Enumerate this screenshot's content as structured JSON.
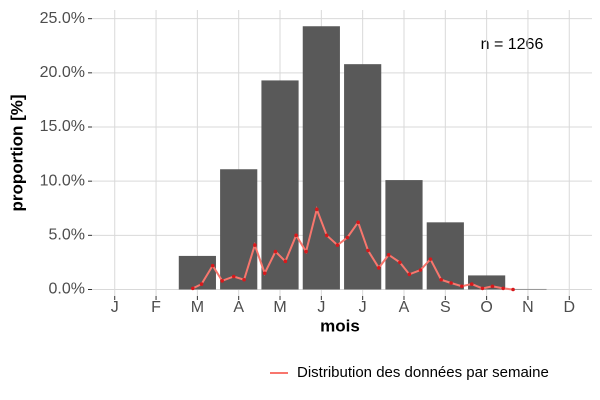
{
  "chart_data": {
    "type": "bar",
    "xlabel": "mois",
    "ylabel": "proportion [%]",
    "annotation": "n = 1266",
    "categories": [
      "J",
      "F",
      "M",
      "A",
      "M",
      "J",
      "J",
      "A",
      "S",
      "O",
      "N",
      "D"
    ],
    "values": [
      0,
      0,
      3.1,
      11.1,
      19.3,
      24.3,
      20.8,
      10.1,
      6.2,
      1.3,
      0.05,
      0
    ],
    "color": "#595959",
    "xlim": [
      0.45,
      12.55
    ],
    "ylim": [
      -0.6,
      25.8
    ],
    "yticks": [
      {
        "value": 0,
        "label": "0.0%"
      },
      {
        "value": 5,
        "label": "5.0%"
      },
      {
        "value": 10,
        "label": "10.0%"
      },
      {
        "value": 15,
        "label": "15.0%"
      },
      {
        "value": 20,
        "label": "20.0%"
      },
      {
        "value": 25,
        "label": "25.0%"
      }
    ],
    "grid": true,
    "legend": "bottom-right",
    "line": {
      "type": "line",
      "name": "Distribution des données par semaine",
      "color": "#f8766d",
      "point_color": "#d7191c",
      "x": [
        2.89,
        3.1,
        3.37,
        3.6,
        3.88,
        4.13,
        4.39,
        4.63,
        4.89,
        5.13,
        5.39,
        5.63,
        5.89,
        6.13,
        6.39,
        6.63,
        6.89,
        7.13,
        7.39,
        7.63,
        7.9,
        8.13,
        8.4,
        8.64,
        8.9,
        9.14,
        9.4,
        9.64,
        9.9,
        10.14,
        10.4,
        10.64
      ],
      "values": [
        0.1,
        0.5,
        2.2,
        0.8,
        1.2,
        0.9,
        4.1,
        1.5,
        3.5,
        2.6,
        5.0,
        3.5,
        7.4,
        5.0,
        4.1,
        4.8,
        6.2,
        3.6,
        2.0,
        3.2,
        2.5,
        1.4,
        1.8,
        2.8,
        0.9,
        0.6,
        0.3,
        0.5,
        0.1,
        0.3,
        0.1,
        0
      ]
    }
  }
}
